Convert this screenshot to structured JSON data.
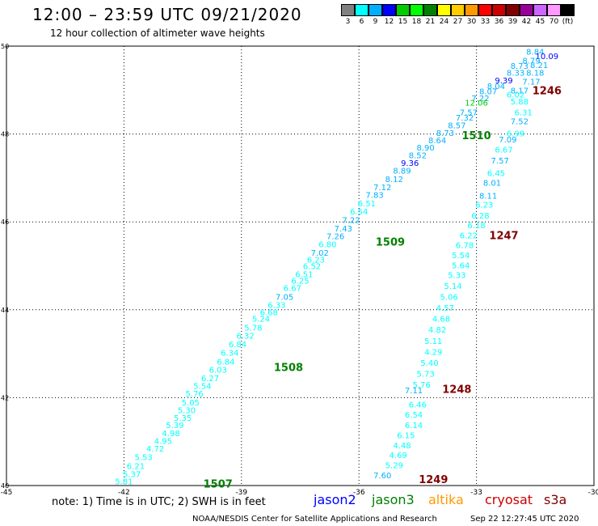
{
  "title": "12:00 – 23:59 UTC 09/21/2020",
  "subtitle": "12 hour collection of altimeter wave heights",
  "legend": {
    "colors": [
      "#808080",
      "#00ffff",
      "#00b0ff",
      "#0000ff",
      "#00cc00",
      "#00ff00",
      "#008000",
      "#ffff00",
      "#ffcc00",
      "#ff9900",
      "#ff0000",
      "#cc0000",
      "#800000",
      "#990099",
      "#cc66ff",
      "#ff99ff",
      "#000000"
    ],
    "labels": [
      "3",
      "6",
      "9",
      "12",
      "15",
      "18",
      "21",
      "24",
      "27",
      "30",
      "33",
      "36",
      "39",
      "42",
      "45",
      "70",
      "(ft)"
    ]
  },
  "note": "note: 1) Time is in UTC; 2) SWH is in feet",
  "satellites": [
    {
      "name": "jason2",
      "color": "#0000ff"
    },
    {
      "name": "jason3",
      "color": "#008000"
    },
    {
      "name": "altika",
      "color": "#ff9900"
    },
    {
      "name": "cryosat",
      "color": "#cc0000"
    },
    {
      "name": "s3a",
      "color": "#800000"
    }
  ],
  "footer": "NOAA/NESDIS Center for Satellite Applications and Research",
  "timestamp": "Sep 22 12:27:45 UTC 2020",
  "chart_data": {
    "type": "scatter",
    "xlim": [
      -45,
      -30
    ],
    "ylim": [
      40,
      50
    ],
    "grid": true,
    "x_ticks": [
      "-45",
      "-42",
      "-39",
      "-36",
      "-33",
      "-30"
    ],
    "y_ticks": [
      "40",
      "42",
      "44",
      "46",
      "48",
      "50"
    ],
    "track_labels": [
      {
        "text": "1246",
        "x": -31.2,
        "y": 49.0,
        "color": "#800000"
      },
      {
        "text": "1510",
        "x": -33.0,
        "y": 47.97,
        "color": "#008000"
      },
      {
        "text": "1247",
        "x": -32.3,
        "y": 45.7,
        "color": "#800000"
      },
      {
        "text": "1509",
        "x": -35.2,
        "y": 45.55,
        "color": "#008000"
      },
      {
        "text": "1508",
        "x": -37.8,
        "y": 42.7,
        "color": "#008000"
      },
      {
        "text": "1248",
        "x": -33.5,
        "y": 42.2,
        "color": "#800000"
      },
      {
        "text": "1249",
        "x": -34.1,
        "y": 40.15,
        "color": "#800000"
      },
      {
        "text": "1507",
        "x": -39.6,
        "y": 40.05,
        "color": "#008000"
      }
    ],
    "points": [
      {
        "v": "8.84",
        "x": -31.5,
        "y": 49.88,
        "c": "#00b0ff"
      },
      {
        "v": "10.09",
        "x": -31.2,
        "y": 49.78,
        "c": "#0000ff"
      },
      {
        "v": "8.79",
        "x": -31.6,
        "y": 49.68,
        "c": "#00b0ff"
      },
      {
        "v": "8.21",
        "x": -31.4,
        "y": 49.58,
        "c": "#00b0ff"
      },
      {
        "v": "8.73",
        "x": -31.9,
        "y": 49.56,
        "c": "#00b0ff"
      },
      {
        "v": "8.33",
        "x": -32.0,
        "y": 49.4,
        "c": "#00b0ff"
      },
      {
        "v": "8.18",
        "x": -31.5,
        "y": 49.4,
        "c": "#00b0ff"
      },
      {
        "v": "9.39",
        "x": -32.3,
        "y": 49.23,
        "c": "#0000ff"
      },
      {
        "v": "7.17",
        "x": -31.6,
        "y": 49.2,
        "c": "#00b0ff"
      },
      {
        "v": "8.04",
        "x": -32.5,
        "y": 49.1,
        "c": "#00b0ff"
      },
      {
        "v": "8.17",
        "x": -31.9,
        "y": 49.0,
        "c": "#00b0ff"
      },
      {
        "v": "8.07",
        "x": -32.7,
        "y": 48.98,
        "c": "#00b0ff"
      },
      {
        "v": "6.02",
        "x": -32.0,
        "y": 48.9,
        "c": "#00ffff"
      },
      {
        "v": "7.22",
        "x": -32.9,
        "y": 48.82,
        "c": "#00b0ff"
      },
      {
        "v": "12.06",
        "x": -33.0,
        "y": 48.72,
        "c": "#00cc00"
      },
      {
        "v": "5.88",
        "x": -31.9,
        "y": 48.75,
        "c": "#00ffff"
      },
      {
        "v": "7.57",
        "x": -33.2,
        "y": 48.5,
        "c": "#00b0ff"
      },
      {
        "v": "6.31",
        "x": -31.8,
        "y": 48.5,
        "c": "#00ffff"
      },
      {
        "v": "7.32",
        "x": -33.3,
        "y": 48.38,
        "c": "#00b0ff"
      },
      {
        "v": "7.52",
        "x": -31.9,
        "y": 48.3,
        "c": "#00b0ff"
      },
      {
        "v": "8.57",
        "x": -33.5,
        "y": 48.2,
        "c": "#00b0ff"
      },
      {
        "v": "6.99",
        "x": -32.0,
        "y": 48.02,
        "c": "#00ffff"
      },
      {
        "v": "8.73",
        "x": -33.8,
        "y": 48.03,
        "c": "#00b0ff"
      },
      {
        "v": "8.64",
        "x": -34.0,
        "y": 47.86,
        "c": "#00b0ff"
      },
      {
        "v": "7.09",
        "x": -32.2,
        "y": 47.88,
        "c": "#00b0ff"
      },
      {
        "v": "8.90",
        "x": -34.3,
        "y": 47.7,
        "c": "#00b0ff"
      },
      {
        "v": "6.67",
        "x": -32.3,
        "y": 47.65,
        "c": "#00ffff"
      },
      {
        "v": "8.52",
        "x": -34.5,
        "y": 47.52,
        "c": "#00b0ff"
      },
      {
        "v": "7.57",
        "x": -32.4,
        "y": 47.4,
        "c": "#00b0ff"
      },
      {
        "v": "9.36",
        "x": -34.7,
        "y": 47.35,
        "c": "#0000ff"
      },
      {
        "v": "8.89",
        "x": -34.9,
        "y": 47.17,
        "c": "#00b0ff"
      },
      {
        "v": "6.45",
        "x": -32.5,
        "y": 47.12,
        "c": "#00ffff"
      },
      {
        "v": "8.12",
        "x": -35.1,
        "y": 46.98,
        "c": "#00b0ff"
      },
      {
        "v": "8.01",
        "x": -32.6,
        "y": 46.9,
        "c": "#00b0ff"
      },
      {
        "v": "7.12",
        "x": -35.4,
        "y": 46.8,
        "c": "#00b0ff"
      },
      {
        "v": "8.11",
        "x": -32.7,
        "y": 46.6,
        "c": "#00b0ff"
      },
      {
        "v": "7.83",
        "x": -35.6,
        "y": 46.62,
        "c": "#00b0ff"
      },
      {
        "v": "6.51",
        "x": -35.8,
        "y": 46.43,
        "c": "#00ffff"
      },
      {
        "v": "6.23",
        "x": -32.8,
        "y": 46.4,
        "c": "#00ffff"
      },
      {
        "v": "6.54",
        "x": -36.0,
        "y": 46.24,
        "c": "#00ffff"
      },
      {
        "v": "6.28",
        "x": -32.9,
        "y": 46.15,
        "c": "#00ffff"
      },
      {
        "v": "7.22",
        "x": -36.2,
        "y": 46.05,
        "c": "#00b0ff"
      },
      {
        "v": "6.18",
        "x": -33.0,
        "y": 45.93,
        "c": "#00ffff"
      },
      {
        "v": "7.43",
        "x": -36.4,
        "y": 45.86,
        "c": "#00b0ff"
      },
      {
        "v": "6.22",
        "x": -33.2,
        "y": 45.7,
        "c": "#00ffff"
      },
      {
        "v": "7.26",
        "x": -36.6,
        "y": 45.68,
        "c": "#00b0ff"
      },
      {
        "v": "6.78",
        "x": -33.3,
        "y": 45.48,
        "c": "#00ffff"
      },
      {
        "v": "6.80",
        "x": -36.8,
        "y": 45.5,
        "c": "#00ffff"
      },
      {
        "v": "7.02",
        "x": -37.0,
        "y": 45.3,
        "c": "#00b0ff"
      },
      {
        "v": "5.54",
        "x": -33.4,
        "y": 45.25,
        "c": "#00ffff"
      },
      {
        "v": "6.23",
        "x": -37.1,
        "y": 45.15,
        "c": "#00ffff"
      },
      {
        "v": "5.64",
        "x": -33.4,
        "y": 45.02,
        "c": "#00ffff"
      },
      {
        "v": "6.52",
        "x": -37.2,
        "y": 45.0,
        "c": "#00ffff"
      },
      {
        "v": "6.51",
        "x": -37.4,
        "y": 44.82,
        "c": "#00ffff"
      },
      {
        "v": "5.33",
        "x": -33.5,
        "y": 44.8,
        "c": "#00ffff"
      },
      {
        "v": "6.25",
        "x": -37.5,
        "y": 44.67,
        "c": "#00ffff"
      },
      {
        "v": "5.14",
        "x": -33.6,
        "y": 44.55,
        "c": "#00ffff"
      },
      {
        "v": "6.67",
        "x": -37.7,
        "y": 44.5,
        "c": "#00ffff"
      },
      {
        "v": "5.06",
        "x": -33.7,
        "y": 44.3,
        "c": "#00ffff"
      },
      {
        "v": "7.05",
        "x": -37.9,
        "y": 44.3,
        "c": "#00b0ff"
      },
      {
        "v": "4.57",
        "x": -33.8,
        "y": 44.05,
        "c": "#00ffff"
      },
      {
        "v": "6.33",
        "x": -38.1,
        "y": 44.12,
        "c": "#00ffff"
      },
      {
        "v": "6.68",
        "x": -38.3,
        "y": 43.95,
        "c": "#00ffff"
      },
      {
        "v": "4.68",
        "x": -33.9,
        "y": 43.8,
        "c": "#00ffff"
      },
      {
        "v": "5.24",
        "x": -38.5,
        "y": 43.8,
        "c": "#00ffff"
      },
      {
        "v": "5.78",
        "x": -38.7,
        "y": 43.6,
        "c": "#00ffff"
      },
      {
        "v": "4.82",
        "x": -34.0,
        "y": 43.55,
        "c": "#00ffff"
      },
      {
        "v": "6.32",
        "x": -38.9,
        "y": 43.42,
        "c": "#00ffff"
      },
      {
        "v": "5.11",
        "x": -34.1,
        "y": 43.3,
        "c": "#00ffff"
      },
      {
        "v": "6.84",
        "x": -39.1,
        "y": 43.22,
        "c": "#00ffff"
      },
      {
        "v": "4.29",
        "x": -34.1,
        "y": 43.05,
        "c": "#00ffff"
      },
      {
        "v": "6.34",
        "x": -39.3,
        "y": 43.03,
        "c": "#00ffff"
      },
      {
        "v": "6.84",
        "x": -39.4,
        "y": 42.83,
        "c": "#00ffff"
      },
      {
        "v": "5.40",
        "x": -34.2,
        "y": 42.8,
        "c": "#00ffff"
      },
      {
        "v": "6.03",
        "x": -39.6,
        "y": 42.64,
        "c": "#00ffff"
      },
      {
        "v": "5.73",
        "x": -34.3,
        "y": 42.55,
        "c": "#00ffff"
      },
      {
        "v": "6.27",
        "x": -39.8,
        "y": 42.45,
        "c": "#00ffff"
      },
      {
        "v": "5.76",
        "x": -34.4,
        "y": 42.3,
        "c": "#00ffff"
      },
      {
        "v": "5.54",
        "x": -40.0,
        "y": 42.27,
        "c": "#00ffff"
      },
      {
        "v": "7.11",
        "x": -34.6,
        "y": 42.17,
        "c": "#00b0ff"
      },
      {
        "v": "5.76",
        "x": -40.2,
        "y": 42.1,
        "c": "#00ffff"
      },
      {
        "v": "5.05",
        "x": -40.3,
        "y": 41.9,
        "c": "#00ffff"
      },
      {
        "v": "6.46",
        "x": -34.5,
        "y": 41.85,
        "c": "#00ffff"
      },
      {
        "v": "5.30",
        "x": -40.4,
        "y": 41.72,
        "c": "#00ffff"
      },
      {
        "v": "6.54",
        "x": -34.6,
        "y": 41.62,
        "c": "#00ffff"
      },
      {
        "v": "5.35",
        "x": -40.5,
        "y": 41.55,
        "c": "#00ffff"
      },
      {
        "v": "6.14",
        "x": -34.6,
        "y": 41.38,
        "c": "#00ffff"
      },
      {
        "v": "5.39",
        "x": -40.7,
        "y": 41.38,
        "c": "#00ffff"
      },
      {
        "v": "4.98",
        "x": -40.8,
        "y": 41.2,
        "c": "#00ffff"
      },
      {
        "v": "6.15",
        "x": -34.8,
        "y": 41.15,
        "c": "#00ffff"
      },
      {
        "v": "4.95",
        "x": -41.0,
        "y": 41.02,
        "c": "#00ffff"
      },
      {
        "v": "4.48",
        "x": -34.9,
        "y": 40.92,
        "c": "#00ffff"
      },
      {
        "v": "4.72",
        "x": -41.2,
        "y": 40.85,
        "c": "#00ffff"
      },
      {
        "v": "4.69",
        "x": -35.0,
        "y": 40.7,
        "c": "#00ffff"
      },
      {
        "v": "5.53",
        "x": -41.5,
        "y": 40.65,
        "c": "#00ffff"
      },
      {
        "v": "5.29",
        "x": -35.1,
        "y": 40.47,
        "c": "#00ffff"
      },
      {
        "v": "6.21",
        "x": -41.7,
        "y": 40.45,
        "c": "#00ffff"
      },
      {
        "v": "5.37",
        "x": -41.8,
        "y": 40.27,
        "c": "#00ffff"
      },
      {
        "v": "7.60",
        "x": -35.4,
        "y": 40.24,
        "c": "#00b0ff"
      },
      {
        "v": "5.81",
        "x": -42.0,
        "y": 40.1,
        "c": "#00ffff"
      }
    ]
  }
}
